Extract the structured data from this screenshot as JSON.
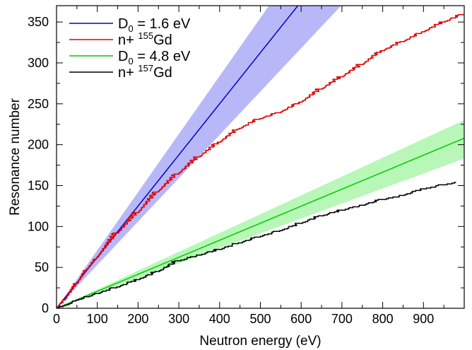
{
  "chart_data": {
    "type": "line",
    "xlabel": "Neutron energy (eV)",
    "ylabel": "Resonance number",
    "xlim": [
      0,
      1000
    ],
    "ylim": [
      0,
      370
    ],
    "x_ticks": [
      0,
      100,
      200,
      300,
      400,
      500,
      600,
      700,
      800,
      900
    ],
    "y_ticks": [
      0,
      50,
      100,
      150,
      200,
      250,
      300,
      350
    ],
    "grid": false,
    "legend_position": "top-left",
    "legend": [
      {
        "main": "D",
        "sub": "0",
        "suffix": " = 1.6 eV"
      },
      {
        "main": "n+ ",
        "sup": "155",
        "suffix": "Gd"
      },
      {
        "main": "D",
        "sub": "0",
        "suffix": " = 4.8 eV"
      },
      {
        "main": "n+ ",
        "sup": "157",
        "suffix": "Gd"
      }
    ],
    "bands": [
      {
        "series_index": 0,
        "color": "#b8b8f8",
        "x": [
          0,
          1000
        ],
        "lower": [
          0,
          530
        ],
        "upper": [
          0,
          710
        ]
      },
      {
        "series_index": 2,
        "color": "#b8f7b8",
        "x": [
          0,
          1000
        ],
        "lower": [
          0,
          183
        ],
        "upper": [
          0,
          230
        ]
      }
    ],
    "series": [
      {
        "color": "#0000cc",
        "style": "line",
        "x": [
          0,
          1000
        ],
        "y": [
          0,
          625
        ]
      },
      {
        "color": "#e00000",
        "style": "step",
        "x": [
          0,
          20,
          50,
          75,
          100,
          150,
          200,
          250,
          300,
          350,
          400,
          450,
          500,
          550,
          600,
          650,
          700,
          750,
          800,
          850,
          900,
          950,
          1000
        ],
        "y": [
          0,
          10,
          30,
          48,
          62,
          92,
          117,
          143,
          165,
          185,
          203,
          220,
          232,
          240,
          252,
          268,
          283,
          298,
          315,
          326,
          338,
          350,
          360
        ]
      },
      {
        "color": "#00cc00",
        "style": "line",
        "x": [
          0,
          1000
        ],
        "y": [
          0,
          208
        ]
      },
      {
        "color": "#000000",
        "style": "step",
        "x": [
          0,
          10,
          25,
          50,
          75,
          100,
          150,
          200,
          250,
          300,
          350,
          400,
          450,
          500,
          550,
          600,
          650,
          700,
          750,
          800,
          850,
          900,
          950,
          980
        ],
        "y": [
          0,
          2,
          4,
          10,
          14,
          18,
          26,
          35,
          45,
          58,
          65,
          72,
          80,
          88,
          95,
          104,
          113,
          120,
          126,
          133,
          138,
          146,
          151,
          154
        ]
      }
    ]
  }
}
